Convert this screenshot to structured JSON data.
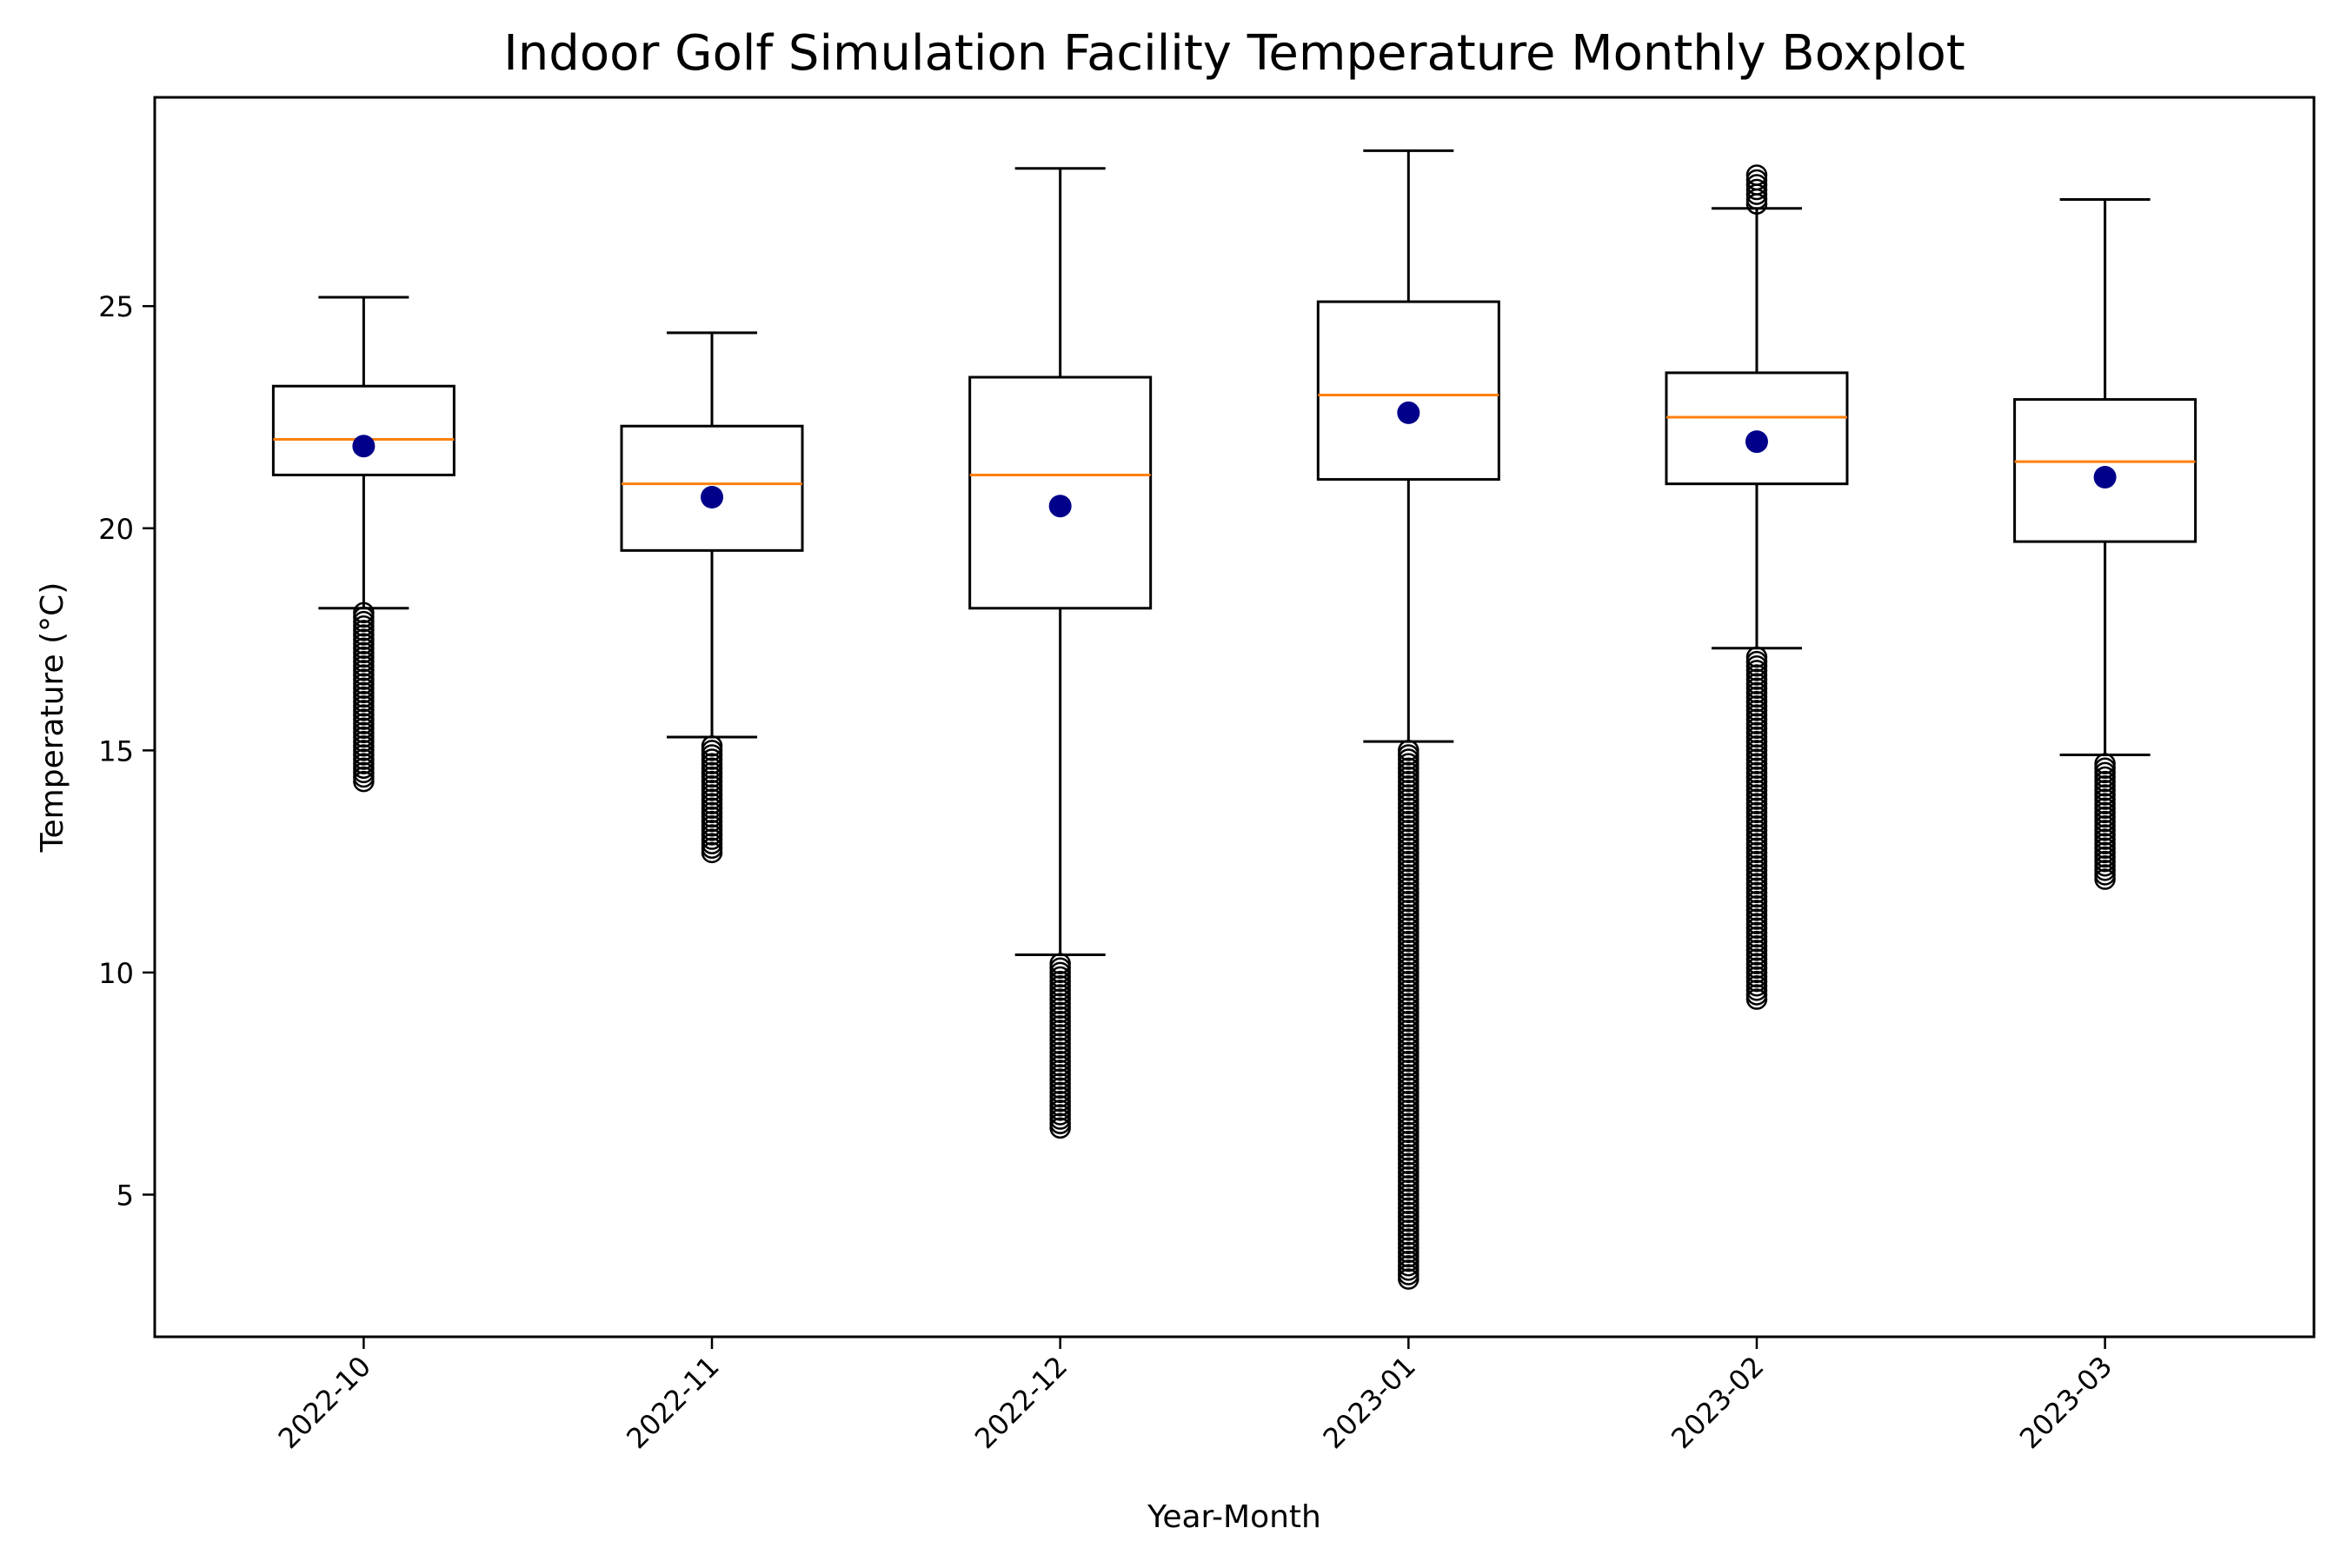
{
  "chart_data": {
    "type": "boxplot",
    "title": "Indoor Golf Simulation Facility Temperature Monthly Boxplot",
    "xlabel": "Year-Month",
    "ylabel": "Temperature (°C)",
    "ylim": [
      1.8,
      29.7
    ],
    "yticks": [
      5,
      10,
      15,
      20,
      25
    ],
    "grid": false,
    "legend": "none",
    "colors": {
      "box": "#000000",
      "median": "#ff7f0e",
      "mean": "#00008b",
      "flier": "#000000"
    },
    "categories": [
      "2022-10",
      "2022-11",
      "2022-12",
      "2023-01",
      "2023-02",
      "2023-03"
    ],
    "boxes": [
      {
        "label": "2022-10",
        "whisker_low": 18.2,
        "q1": 21.2,
        "median": 22.0,
        "q3": 23.2,
        "whisker_high": 25.2,
        "mean": 21.85,
        "outliers_low": [
          14.3,
          18.1
        ],
        "outliers_high": null
      },
      {
        "label": "2022-11",
        "whisker_low": 15.3,
        "q1": 19.5,
        "median": 21.0,
        "q3": 22.3,
        "whisker_high": 24.4,
        "mean": 20.7,
        "outliers_low": [
          12.7,
          15.1
        ],
        "outliers_high": null
      },
      {
        "label": "2022-12",
        "whisker_low": 10.4,
        "q1": 18.2,
        "median": 21.2,
        "q3": 23.4,
        "whisker_high": 28.1,
        "mean": 20.5,
        "outliers_low": [
          6.5,
          10.2
        ],
        "outliers_high": null
      },
      {
        "label": "2023-01",
        "whisker_low": 15.2,
        "q1": 21.1,
        "median": 23.0,
        "q3": 25.1,
        "whisker_high": 28.5,
        "mean": 22.6,
        "outliers_low": [
          3.1,
          15.0
        ],
        "outliers_high": null
      },
      {
        "label": "2023-02",
        "whisker_low": 17.3,
        "q1": 21.0,
        "median": 22.5,
        "q3": 23.5,
        "whisker_high": 27.2,
        "mean": 21.95,
        "outliers_low": [
          9.4,
          17.1
        ],
        "outliers_high": [
          27.3,
          27.95
        ]
      },
      {
        "label": "2023-03",
        "whisker_low": 14.9,
        "q1": 19.7,
        "median": 21.5,
        "q3": 22.9,
        "whisker_high": 27.4,
        "mean": 21.15,
        "outliers_low": [
          12.1,
          14.7
        ],
        "outliers_high": null
      }
    ]
  }
}
